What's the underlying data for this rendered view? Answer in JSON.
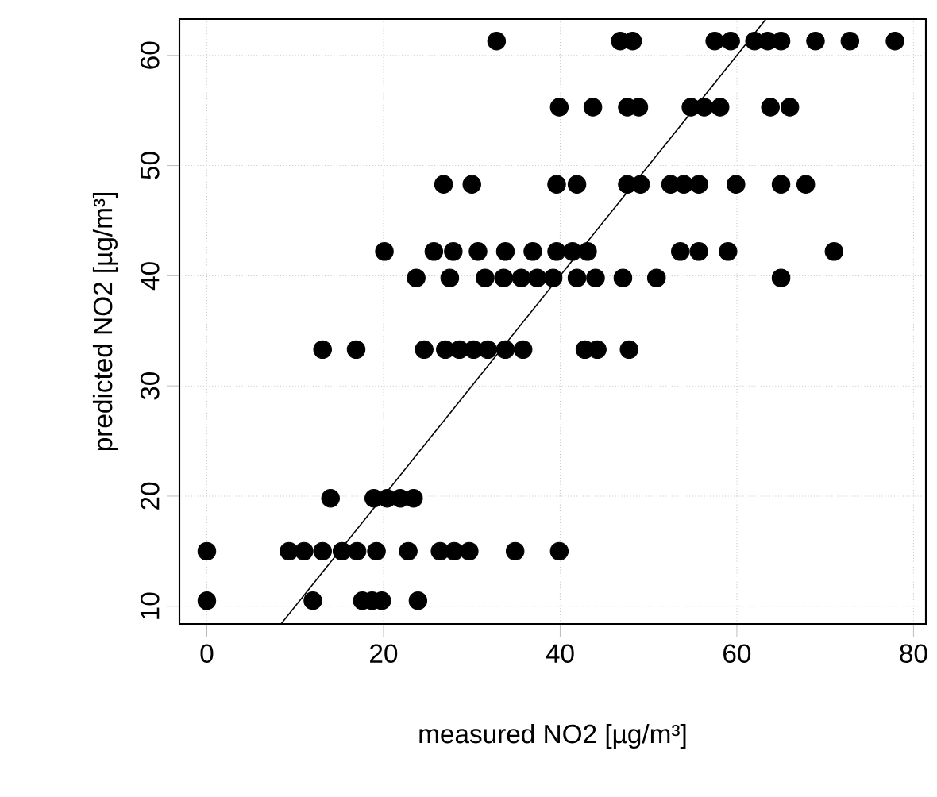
{
  "chart_data": {
    "type": "scatter",
    "xlabel": "measured NO2 [µg/m³]",
    "ylabel": "predicted NO2 [µg/m³]",
    "xlim": [
      -3.1,
      81.4
    ],
    "ylim": [
      8.4,
      63.3
    ],
    "xticks": [
      0,
      20,
      40,
      60,
      80
    ],
    "yticks": [
      10,
      20,
      30,
      40,
      50,
      60
    ],
    "grid": true,
    "marker": "circle",
    "series": [
      {
        "color": "#000000",
        "x": [
          32.8,
          46.8,
          48.2,
          57.5,
          59.3,
          62,
          63.5,
          65,
          68.9,
          72.8,
          77.9,
          39.9,
          43.7,
          47.6,
          48.9,
          54.8,
          56.3,
          58.1,
          63.8,
          66,
          26.8,
          30,
          39.6,
          41.9,
          47.6,
          49.1,
          52.5,
          54,
          55.7,
          59.9,
          65,
          67.8,
          20.1,
          25.7,
          27.9,
          30.7,
          33.8,
          36.9,
          39.6,
          41.4,
          43.1,
          53.6,
          55.7,
          59,
          71,
          23.7,
          27.5,
          31.5,
          33.6,
          35.6,
          37.4,
          39.2,
          41.9,
          44,
          47.1,
          50.9,
          65,
          13.1,
          16.9,
          24.6,
          27,
          28.6,
          30.2,
          31.8,
          33.8,
          35.8,
          42.8,
          44.2,
          47.8,
          14,
          18.9,
          20.4,
          21.9,
          23.4,
          0,
          9.3,
          11,
          13.1,
          15.3,
          17,
          19.2,
          22.8,
          26.4,
          28,
          29.7,
          34.9,
          39.9,
          0,
          12,
          17.6,
          18.7,
          19.8,
          23.9
        ],
        "values": [
          61.3,
          61.3,
          61.3,
          61.3,
          61.3,
          61.3,
          61.3,
          61.3,
          61.3,
          61.3,
          61.3,
          55.3,
          55.3,
          55.3,
          55.3,
          55.3,
          55.3,
          55.3,
          55.3,
          55.3,
          48.3,
          48.3,
          48.3,
          48.3,
          48.3,
          48.3,
          48.3,
          48.3,
          48.3,
          48.3,
          48.3,
          48.3,
          42.2,
          42.2,
          42.2,
          42.2,
          42.2,
          42.2,
          42.2,
          42.2,
          42.2,
          42.2,
          42.2,
          42.2,
          42.2,
          39.8,
          39.8,
          39.8,
          39.8,
          39.8,
          39.8,
          39.8,
          39.8,
          39.8,
          39.8,
          39.8,
          39.8,
          33.3,
          33.3,
          33.3,
          33.3,
          33.3,
          33.3,
          33.3,
          33.3,
          33.3,
          33.3,
          33.3,
          33.3,
          19.8,
          19.8,
          19.8,
          19.8,
          19.8,
          15,
          15,
          15,
          15,
          15,
          15,
          15,
          15,
          15,
          15,
          15,
          15,
          15,
          10.5,
          10.5,
          10.5,
          10.5,
          10.5,
          10.5
        ]
      },
      {
        "type": "line",
        "color": "#000000",
        "marker": "none",
        "x": [
          8.4,
          63.3
        ],
        "values": [
          8.4,
          63.3
        ]
      }
    ]
  }
}
